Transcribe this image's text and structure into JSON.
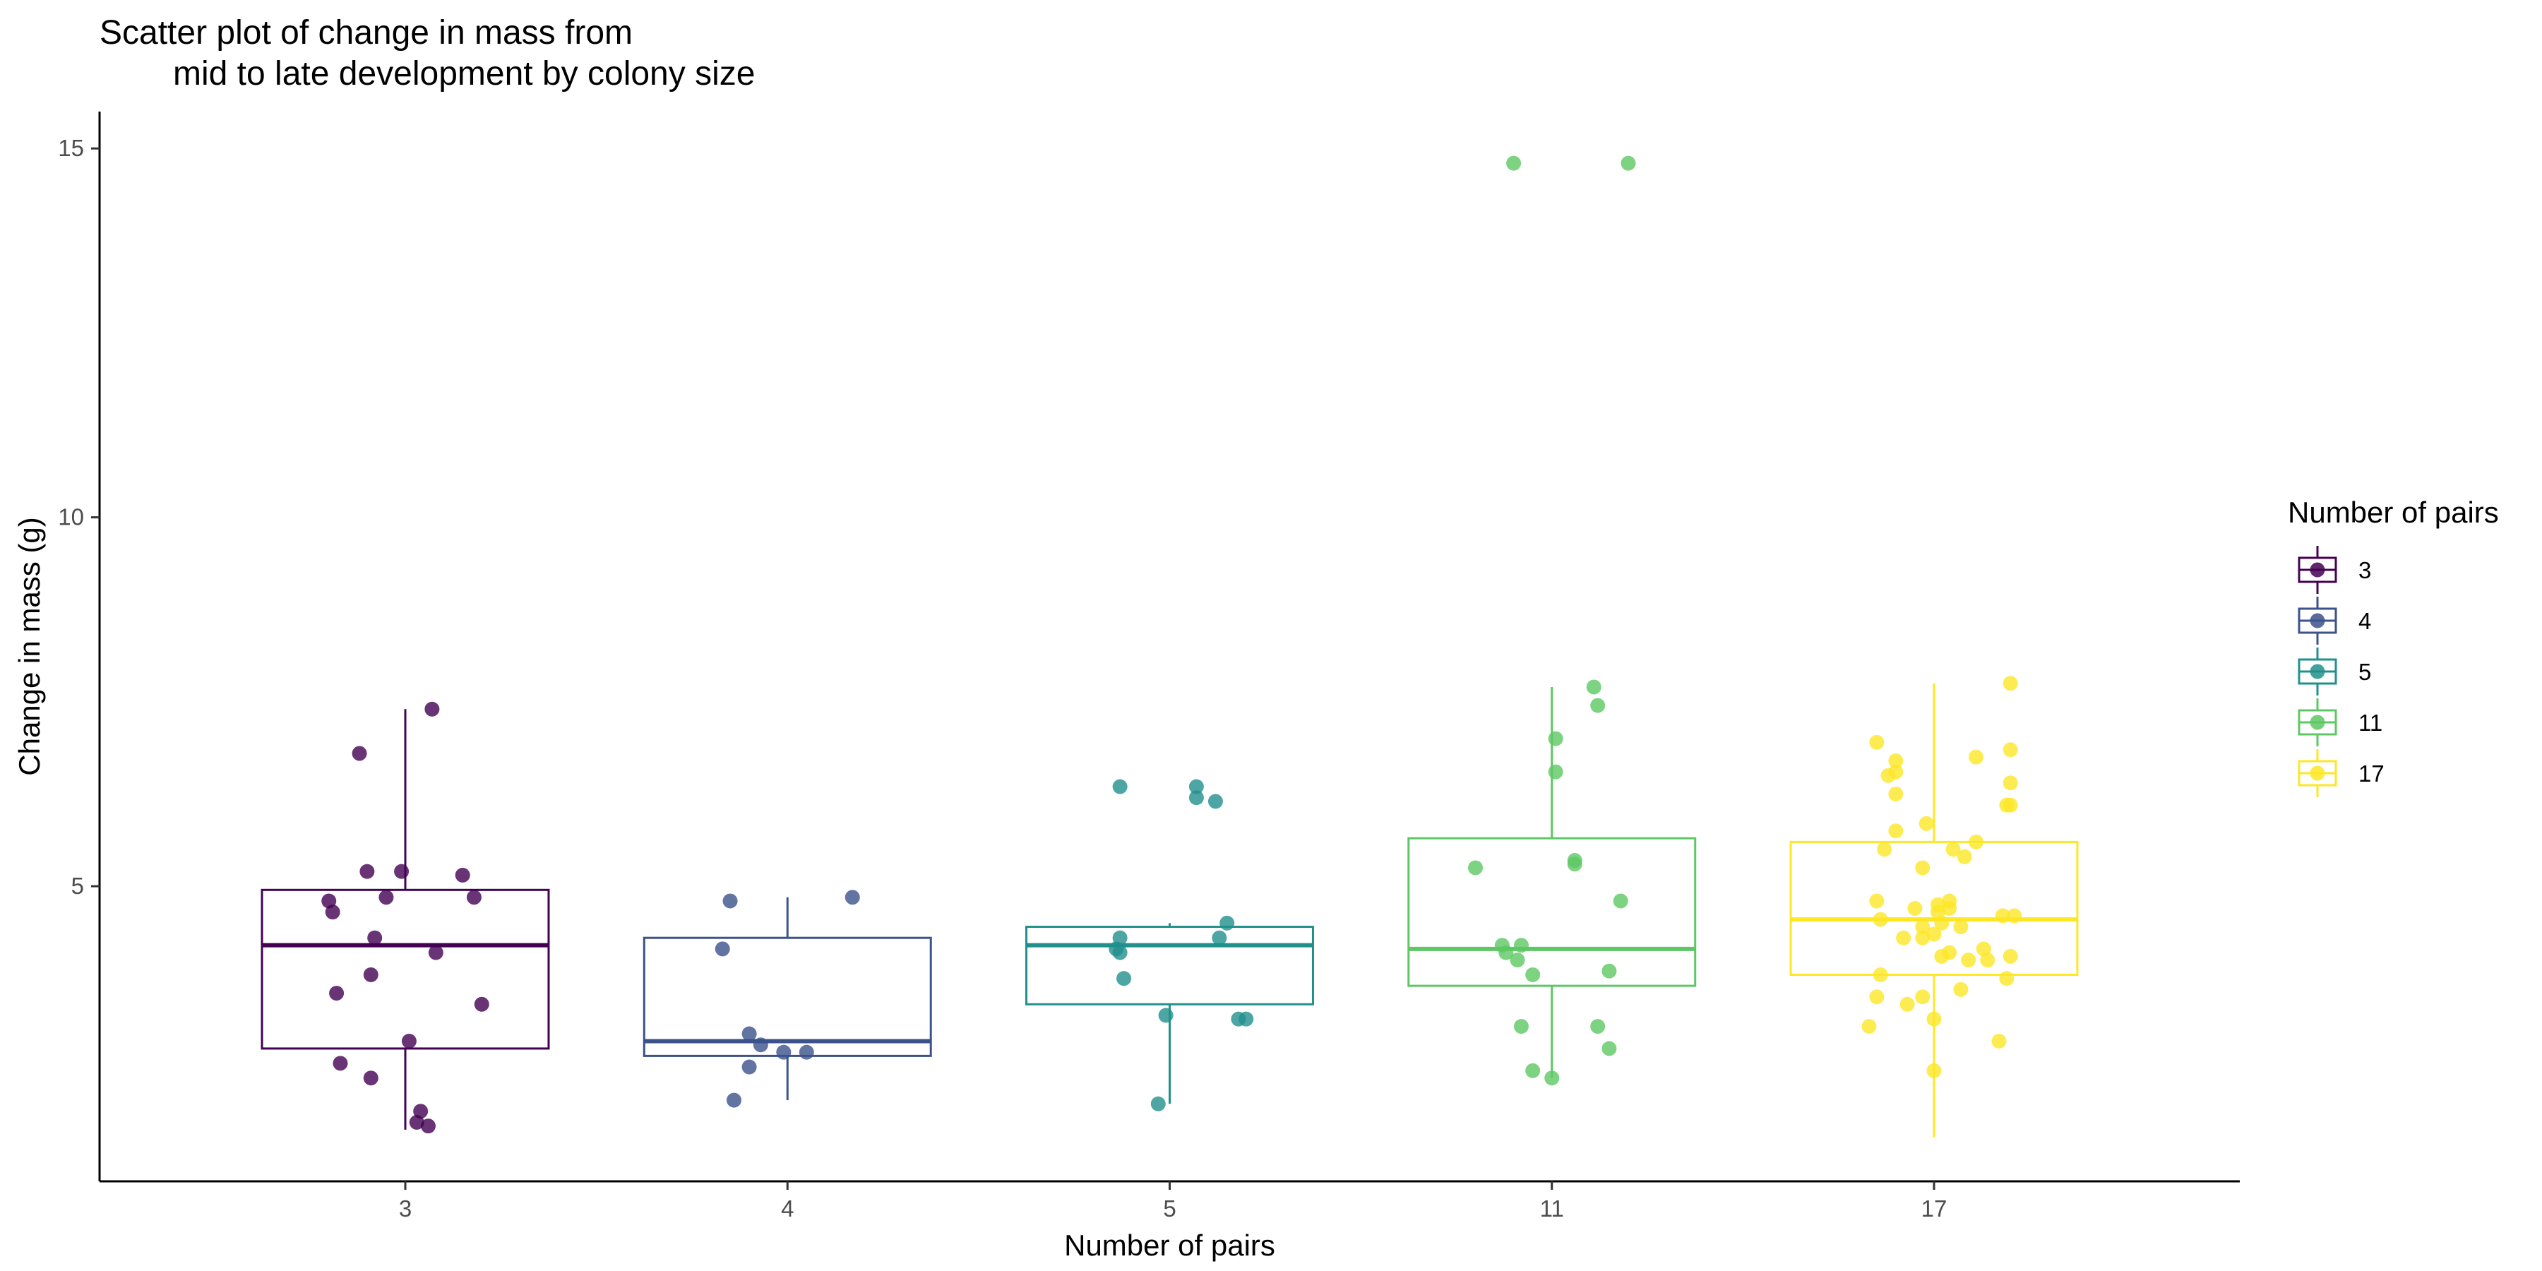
{
  "chart_data": {
    "type": "box+jitter",
    "title_line1": "Scatter plot of change in mass from",
    "title_line2": "mid to late development by colony size",
    "xlabel": "Number of pairs",
    "ylabel": "Change in mass (g)",
    "ylim": [
      1,
      15.5
    ],
    "yticks": [
      "5",
      "10",
      "15"
    ],
    "ytick_values": [
      5,
      10,
      15
    ],
    "categories": [
      "3",
      "4",
      "5",
      "11",
      "17"
    ],
    "legend": {
      "title": "Number of pairs",
      "placement": "right",
      "labels": [
        "3",
        "4",
        "5",
        "11",
        "17"
      ]
    },
    "colors": [
      "#440154",
      "#3b528b",
      "#21908c",
      "#5dc863",
      "#fde725"
    ],
    "boxes": [
      {
        "category": "3",
        "whisker_low": 1.7,
        "q1": 2.8,
        "median": 4.2,
        "q3": 4.95,
        "whisker_high": 7.4
      },
      {
        "category": "4",
        "whisker_low": 2.1,
        "q1": 2.7,
        "median": 2.9,
        "q3": 4.3,
        "whisker_high": 4.85
      },
      {
        "category": "5",
        "whisker_low": 2.05,
        "q1": 3.4,
        "median": 4.2,
        "q3": 4.45,
        "whisker_high": 4.5
      },
      {
        "category": "11",
        "whisker_low": 2.4,
        "q1": 3.65,
        "median": 4.15,
        "q3": 5.65,
        "whisker_high": 7.7
      },
      {
        "category": "17",
        "whisker_low": 1.6,
        "q1": 3.8,
        "median": 4.55,
        "q3": 5.6,
        "whisker_high": 7.75
      }
    ],
    "points": [
      {
        "category": "3",
        "jitter": [
          0.07,
          -0.12,
          -0.1,
          -0.01,
          0.15,
          -0.05,
          0.18,
          -0.2,
          -0.19,
          -0.08,
          0.08,
          -0.09,
          -0.18,
          0.2,
          0.01,
          -0.17,
          -0.09,
          0.04,
          0.03,
          0.06
        ],
        "y": [
          7.4,
          6.8,
          5.2,
          5.2,
          5.15,
          4.85,
          4.85,
          4.8,
          4.65,
          4.3,
          4.1,
          3.8,
          3.55,
          3.4,
          2.9,
          2.6,
          2.4,
          1.95,
          1.8,
          1.75
        ]
      },
      {
        "category": "4",
        "jitter": [
          -0.15,
          0.17,
          -0.17,
          -0.1,
          -0.07,
          -0.01,
          -0.1,
          0.05,
          -0.14
        ],
        "y": [
          4.8,
          4.85,
          4.15,
          3.0,
          2.85,
          2.75,
          2.55,
          2.75,
          2.1
        ]
      },
      {
        "category": "5",
        "jitter": [
          -0.13,
          0.07,
          0.07,
          0.12,
          -0.13,
          -0.14,
          -0.12,
          0.15,
          0.13,
          -0.13,
          0.18,
          -0.01,
          0.2,
          -0.03
        ],
        "y": [
          6.35,
          6.35,
          6.2,
          6.15,
          4.3,
          4.15,
          3.75,
          4.5,
          4.3,
          4.1,
          3.2,
          3.25,
          3.2,
          2.05
        ]
      },
      {
        "category": "11",
        "jitter": [
          -0.1,
          0.2,
          0.11,
          0.12,
          0.01,
          0.01,
          0.06,
          0.06,
          -0.2,
          0.18,
          -0.13,
          -0.12,
          -0.08,
          -0.09,
          -0.05,
          0.15,
          -0.08,
          0.12,
          0.15,
          -0.05,
          0.0
        ],
        "y": [
          14.8,
          14.8,
          7.7,
          7.45,
          7.0,
          6.55,
          5.35,
          5.3,
          5.25,
          4.8,
          4.2,
          4.1,
          4.2,
          4.0,
          3.8,
          3.85,
          3.1,
          3.1,
          2.8,
          2.5,
          2.4
        ]
      },
      {
        "category": "17",
        "jitter": [
          0.2,
          -0.15,
          -0.1,
          0.11,
          0.2,
          -0.1,
          -0.12,
          0.2,
          -0.1,
          0.2,
          0.19,
          -0.02,
          -0.1,
          0.11,
          0.05,
          -0.03,
          -0.13,
          0.08,
          0.04,
          0.01,
          0.04,
          -0.15,
          -0.05,
          0.21,
          0.18,
          0.01,
          -0.14,
          0.02,
          -0.03,
          0.07,
          0.0,
          -0.08,
          -0.03,
          0.13,
          0.2,
          0.04,
          0.02,
          0.09,
          0.14,
          -0.14,
          0.19,
          -0.15,
          0.07,
          -0.03,
          -0.07,
          0.0,
          0.17,
          -0.17,
          0.0
        ],
        "y": [
          7.75,
          6.95,
          6.7,
          6.75,
          6.85,
          6.55,
          6.5,
          6.4,
          6.25,
          6.1,
          6.1,
          5.85,
          5.75,
          5.6,
          5.5,
          5.25,
          5.5,
          5.4,
          4.8,
          4.75,
          4.7,
          4.8,
          4.7,
          4.6,
          4.6,
          4.65,
          4.55,
          4.5,
          4.45,
          4.45,
          4.35,
          4.3,
          4.3,
          4.15,
          4.05,
          4.1,
          4.05,
          4.0,
          4.0,
          3.8,
          3.75,
          3.5,
          3.6,
          3.5,
          3.4,
          3.2,
          2.9,
          3.1,
          2.5
        ]
      }
    ]
  }
}
